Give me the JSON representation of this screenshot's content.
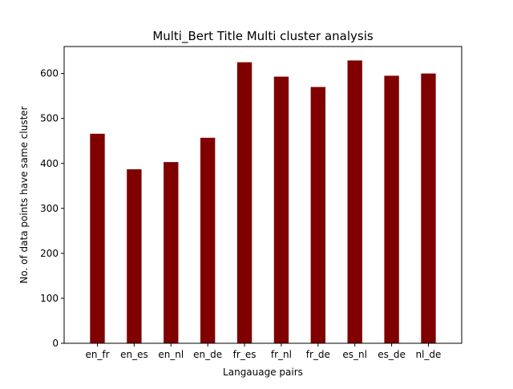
{
  "chart_data": {
    "type": "bar",
    "title": "Multi_Bert Title Multi cluster analysis",
    "xlabel": "Langauage pairs",
    "ylabel": "No. of data points have same cluster",
    "categories": [
      "en_fr",
      "en_es",
      "en_nl",
      "en_de",
      "fr_es",
      "fr_nl",
      "fr_de",
      "es_nl",
      "es_de",
      "nl_de"
    ],
    "values": [
      466,
      387,
      403,
      457,
      625,
      593,
      570,
      629,
      595,
      600
    ],
    "ylim": [
      0,
      660
    ],
    "yticks": [
      0,
      100,
      200,
      300,
      400,
      500,
      600
    ],
    "bar_color": "#800000",
    "grid": false,
    "legend": false
  }
}
